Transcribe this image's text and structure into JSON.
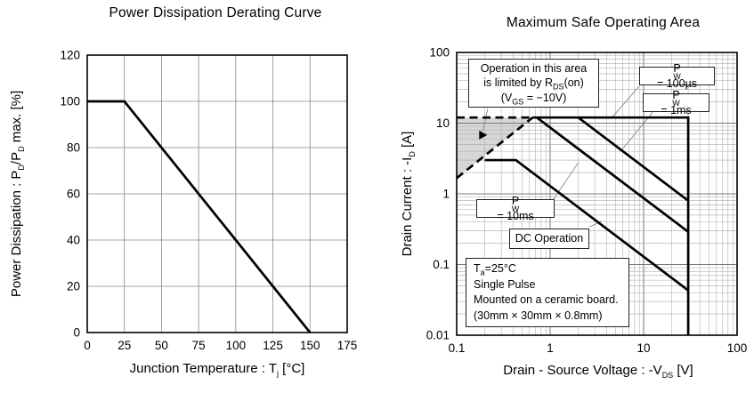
{
  "chart_data": [
    {
      "id": "derating",
      "type": "line",
      "title": "Power Dissipation Derating Curve",
      "xlabel": "Junction Temperature : T_{j} [°C]",
      "ylabel": "Power Dissipation : P_{D}/P_{D} max. [%]",
      "xscale": "linear",
      "yscale": "linear",
      "xlim": [
        0,
        175
      ],
      "ylim": [
        0,
        120
      ],
      "xticks": [
        0,
        25,
        50,
        75,
        100,
        125,
        150,
        175
      ],
      "xtick_labels": [
        "0",
        "25",
        "50",
        "75",
        "100",
        "125",
        "150",
        "175"
      ],
      "yticks": [
        0,
        20,
        40,
        60,
        80,
        100,
        120
      ],
      "ytick_labels": [
        "0",
        "20",
        "40",
        "60",
        "80",
        "100",
        "120"
      ],
      "grid": true,
      "curves": [
        {
          "name": "derating-line",
          "points": [
            [
              0,
              100
            ],
            [
              25,
              100
            ],
            [
              150,
              0
            ]
          ]
        }
      ]
    },
    {
      "id": "soa",
      "type": "line",
      "title": "Maximum Safe Operating Area",
      "xlabel": "Drain - Source Voltage : -V_{DS} [V]",
      "ylabel": "Drain Current : -I_{D} [A]",
      "xscale": "log",
      "yscale": "log",
      "xlim": [
        0.1,
        100
      ],
      "ylim": [
        0.01,
        100
      ],
      "xticks": [
        0.1,
        1,
        10,
        100
      ],
      "xtick_labels": [
        "0.1",
        "1",
        "10",
        "100"
      ],
      "yticks": [
        0.01,
        0.1,
        1,
        10,
        100
      ],
      "ytick_labels": [
        "0.01",
        "0.1",
        "1",
        "10",
        "100"
      ],
      "grid": true,
      "shaded_region": [
        [
          0.1,
          1.67
        ],
        [
          0.65,
          12
        ],
        [
          0.1,
          12
        ]
      ],
      "marker": {
        "x": 0.19,
        "y": 6.8,
        "shape": "triangle-right"
      },
      "curves": [
        {
          "name": "rds-limit-current-max",
          "dashed": true,
          "points": [
            [
              0.1,
              12
            ],
            [
              0.65,
              12
            ]
          ]
        },
        {
          "name": "rds-on-limit-line",
          "dashed": true,
          "points": [
            [
              0.1,
              1.67
            ],
            [
              0.65,
              12
            ]
          ]
        },
        {
          "name": "pw-100us-boundary",
          "points": [
            [
              0.65,
              12
            ],
            [
              30,
              12
            ],
            [
              30,
              0.01
            ]
          ]
        },
        {
          "name": "pw-1ms-boundary",
          "points": [
            [
              2,
              12
            ],
            [
              30,
              0.8
            ]
          ]
        },
        {
          "name": "pw-10ms-boundary",
          "points": [
            [
              0.72,
              12
            ],
            [
              30,
              0.29
            ]
          ]
        },
        {
          "name": "dc-boundary",
          "points": [
            [
              0.2,
              3
            ],
            [
              0.43,
              3
            ],
            [
              30,
              0.043
            ]
          ]
        }
      ],
      "pointers": [
        [
          [
            0.215,
            16.0
          ],
          [
            0.19,
            7.8
          ]
        ],
        [
          [
            8.9,
            33.0
          ],
          [
            4.6,
            12.1
          ]
        ],
        [
          [
            12.5,
            14.3
          ],
          [
            5.6,
            3.9
          ]
        ],
        [
          [
            1.09,
            0.84
          ],
          [
            2.0,
            2.76
          ]
        ],
        [
          [
            2.62,
            0.34
          ],
          [
            3.55,
            0.41
          ]
        ]
      ],
      "annotations": {
        "rds_note": {
          "lines": [
            "Operation in this area",
            "is limited by R_{DS}(on)",
            "(V_{GS} = −10V)"
          ]
        },
        "pw_100us": "P_{W} = 100µs",
        "pw_1ms": "P_{W} = 1ms",
        "pw_10ms": "P_{W} = 10ms",
        "dc": "DC Operation",
        "conditions": {
          "lines": [
            "T_{a}=25°C",
            "Single Pulse",
            "Mounted on a ceramic board.",
            "(30mm  ×  30mm  ×  0.8mm)"
          ]
        }
      }
    }
  ]
}
